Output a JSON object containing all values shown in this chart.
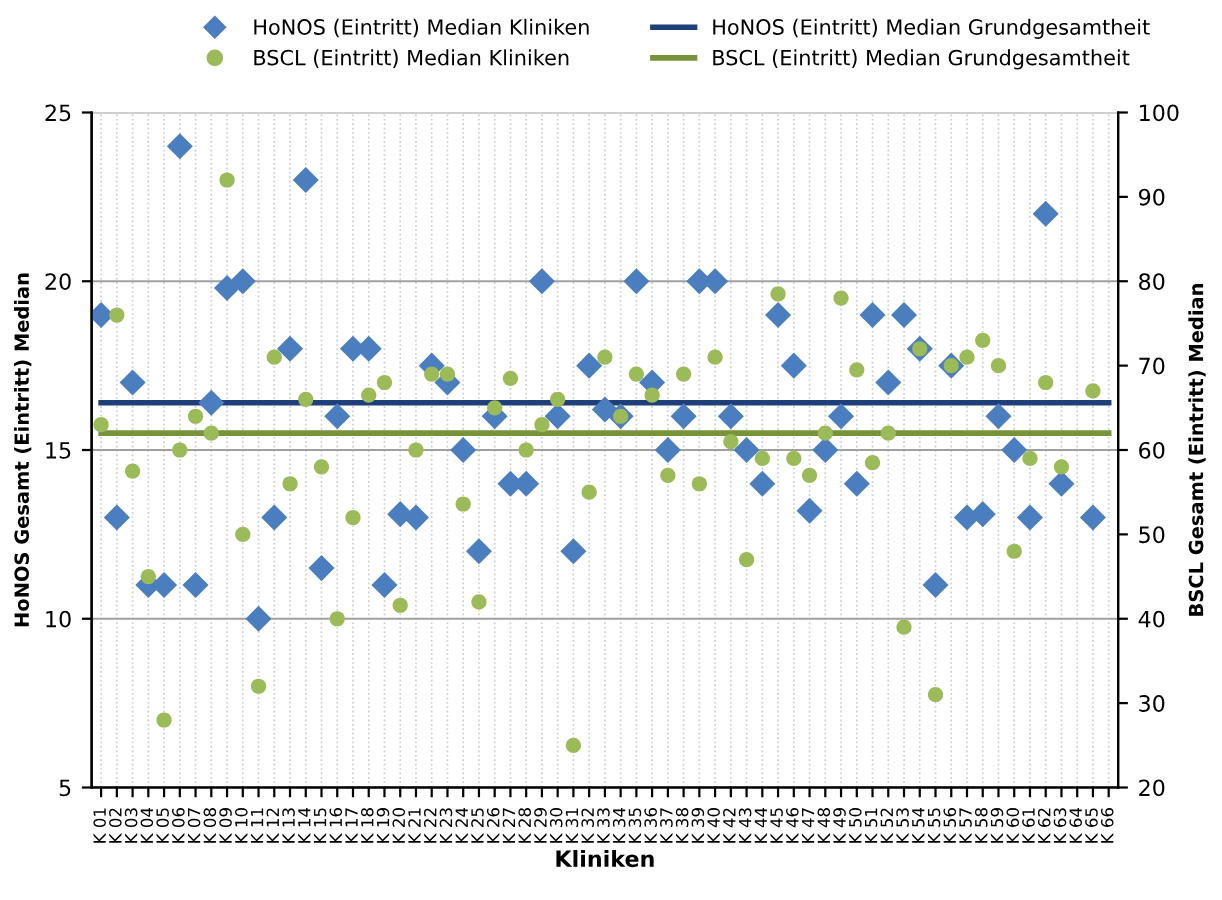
{
  "chart_data": {
    "type": "scatter",
    "xlabel": "Kliniken",
    "ylabel": "HoNOS Gesamt (Eintritt) Median",
    "y2label": "BSCL Gesamt (Eintritt) Median",
    "categories": [
      "K 01",
      "K 02",
      "K 03",
      "K 04",
      "K 05",
      "K 06",
      "K 07",
      "K 08",
      "K 09",
      "K 10",
      "K 11",
      "K 12",
      "K 13",
      "K 14",
      "K 15",
      "K 16",
      "K 17",
      "K 18",
      "K 19",
      "K 20",
      "K 21",
      "K 22",
      "K 23",
      "K 24",
      "K 25",
      "K 26",
      "K 27",
      "K 28",
      "K 29",
      "K 30",
      "K 31",
      "K 32",
      "K 33",
      "K 34",
      "K 35",
      "K 36",
      "K 37",
      "K 38",
      "K 39",
      "K 40",
      "K 42",
      "K 43",
      "K 44",
      "K 45",
      "K 46",
      "K 47",
      "K 48",
      "K 49",
      "K 50",
      "K 51",
      "K 52",
      "K 53",
      "K 54",
      "K 55",
      "K 56",
      "K 57",
      "K 58",
      "K 59",
      "K 60",
      "K 61",
      "K 62",
      "K 63",
      "K 64",
      "K 65",
      "K 66"
    ],
    "series": [
      {
        "name": "HoNOS (Eintritt) Median Kliniken",
        "marker": "diamond",
        "color": "#4a7ebf",
        "values": [
          19,
          13,
          17,
          11,
          11,
          24,
          11,
          16.4,
          19.8,
          20,
          10,
          13,
          18,
          23,
          11.5,
          16,
          18,
          18,
          11,
          13.1,
          13,
          17.5,
          17,
          15,
          12,
          16,
          14,
          14,
          20,
          16,
          12,
          17.5,
          16.2,
          16,
          20,
          17,
          15,
          16,
          20,
          20,
          16,
          15,
          14,
          19,
          17.5,
          13.2,
          15,
          16,
          14,
          19,
          17,
          19,
          18,
          11,
          17.5,
          13,
          13.1,
          16,
          15,
          13,
          22,
          14,
          null,
          13,
          null
        ]
      },
      {
        "name": "BSCL (Eintritt) Median Kliniken",
        "marker": "circle",
        "axis": "y2",
        "color": "#9bbb59",
        "values": [
          63,
          76,
          57.5,
          45,
          28,
          60,
          64,
          62,
          92,
          50,
          32,
          71,
          56,
          66,
          58,
          40,
          52,
          66.5,
          68,
          41.6,
          60,
          69,
          69,
          53.6,
          42,
          65,
          68.5,
          60,
          63,
          66,
          25,
          55,
          71,
          64,
          69,
          66.5,
          57,
          69,
          56,
          71,
          61,
          47,
          59,
          78.5,
          59,
          57,
          62,
          78,
          69.5,
          58.5,
          62,
          39,
          72,
          31,
          70,
          71,
          73,
          70,
          48,
          59,
          68,
          58,
          null,
          67,
          null
        ]
      },
      {
        "name": "HoNOS (Eintritt) Median Grundgesamtheit",
        "type": "line",
        "marker": "none",
        "color": "#1f3f7a",
        "values": [
          16.4,
          16.4,
          16.4,
          16.4,
          16.4,
          16.4,
          16.4,
          16.4,
          16.4,
          16.4,
          16.4,
          16.4,
          16.4,
          16.4,
          16.4,
          16.4,
          16.4,
          16.4,
          16.4,
          16.4,
          16.4,
          16.4,
          16.4,
          16.4,
          16.4,
          16.4,
          16.4,
          16.4,
          16.4,
          16.4,
          16.4,
          16.4,
          16.4,
          16.4,
          16.4,
          16.4,
          16.4,
          16.4,
          16.4,
          16.4,
          16.4,
          16.4,
          16.4,
          16.4,
          16.4,
          16.4,
          16.4,
          16.4,
          16.4,
          16.4,
          16.4,
          16.4,
          16.4,
          16.4,
          16.4,
          16.4,
          16.4,
          16.4,
          16.4,
          16.4,
          16.4,
          16.4,
          16.4,
          16.4,
          16.4
        ]
      },
      {
        "name": "BSCL (Eintritt) Median Grundgesamtheit",
        "type": "line",
        "marker": "none",
        "axis": "y2",
        "color": "#77933c",
        "values": [
          62,
          62,
          62,
          62,
          62,
          62,
          62,
          62,
          62,
          62,
          62,
          62,
          62,
          62,
          62,
          62,
          62,
          62,
          62,
          62,
          62,
          62,
          62,
          62,
          62,
          62,
          62,
          62,
          62,
          62,
          62,
          62,
          62,
          62,
          62,
          62,
          62,
          62,
          62,
          62,
          62,
          62,
          62,
          62,
          62,
          62,
          62,
          62,
          62,
          62,
          62,
          62,
          62,
          62,
          62,
          62,
          62,
          62,
          62,
          62,
          62,
          62,
          62,
          62,
          62
        ]
      }
    ],
    "ylim": [
      5,
      25
    ],
    "yticks": [
      5,
      10,
      15,
      20,
      25
    ],
    "y2lim": [
      20,
      100
    ],
    "y2ticks": [
      20,
      30,
      40,
      50,
      60,
      70,
      80,
      90,
      100
    ],
    "grid": true,
    "legend": "top"
  }
}
